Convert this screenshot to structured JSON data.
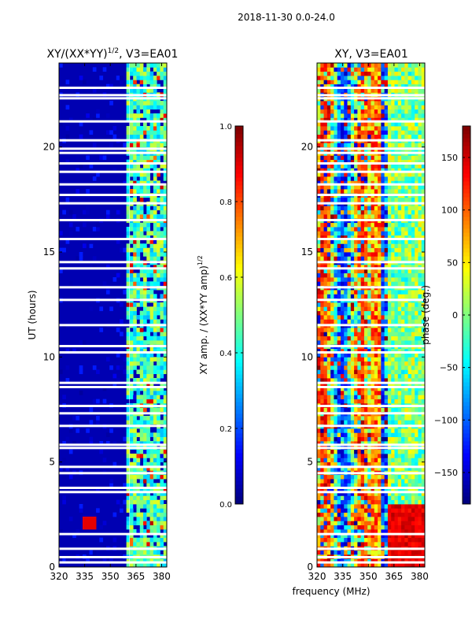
{
  "suptitle": "2018-11-30 0.0-24.0",
  "shared_xlabel": "frequency (MHz)",
  "colors": {
    "jet": [
      "#00007f",
      "#0000ff",
      "#007fff",
      "#00ffff",
      "#7fff7f",
      "#ffff00",
      "#ff7f00",
      "#ff0000",
      "#7f0000"
    ],
    "background": "#ffffff",
    "gap": "#ffffff"
  },
  "gaps_hours": [
    0.2,
    0.45,
    0.85,
    1.55,
    3.55,
    3.75,
    4.45,
    4.75,
    5.65,
    5.8,
    6.7,
    7.3,
    7.65,
    8.55,
    8.75,
    10.2,
    10.5,
    11.5,
    12.7,
    13.3,
    14.2,
    14.5,
    15.6,
    16.5,
    17.3,
    17.7,
    18.2,
    18.8,
    19.2,
    19.7,
    19.9,
    20.3,
    21.2,
    22.3,
    22.45,
    22.8
  ],
  "chart_data": [
    {
      "type": "heatmap",
      "title": "XY/(XX*YY)^1/2, V3=EA01",
      "title_main": "XY/(XX*YY)",
      "title_sup": "1/2",
      "title_tail": ", V3=EA01",
      "xlabel": "",
      "ylabel": "UT (hours)",
      "xlim": [
        320,
        383
      ],
      "ylim": [
        0,
        24
      ],
      "xticks": [
        320,
        335,
        350,
        365,
        380
      ],
      "yticks": [
        0,
        5,
        10,
        15,
        20
      ],
      "colorbar": {
        "label": "XY amp. / (XX*YY amp)^1/2",
        "label_main": "XY amp. / (XX*YY amp)",
        "label_sup": "1/2",
        "range": [
          0.0,
          1.0
        ],
        "ticks": [
          "0.0",
          "0.2",
          "0.4",
          "0.6",
          "0.8",
          "1.0"
        ]
      },
      "background_value": 0.05,
      "features": [
        {
          "kind": "band",
          "freq_range": [
            360,
            383
          ],
          "value_range": [
            0.3,
            0.6
          ],
          "note": "elevated correlation above ~360 MHz"
        },
        {
          "kind": "spot",
          "freq": 337,
          "hour": 2.0,
          "value": 0.9
        }
      ]
    },
    {
      "type": "heatmap",
      "title": "XY, V3=EA01",
      "xlabel": "frequency (MHz)",
      "ylabel": "",
      "xlim": [
        320,
        383
      ],
      "ylim": [
        0,
        24
      ],
      "xticks": [
        320,
        335,
        350,
        365,
        380
      ],
      "yticks": [
        0,
        5,
        10,
        15,
        20
      ],
      "colorbar": {
        "label": "phase (deg.)",
        "range": [
          -180,
          180
        ],
        "ticks": [
          "-150",
          "-100",
          "-50",
          "0",
          "50",
          "100",
          "150"
        ]
      },
      "value_range": [
        -180,
        180
      ]
    }
  ]
}
